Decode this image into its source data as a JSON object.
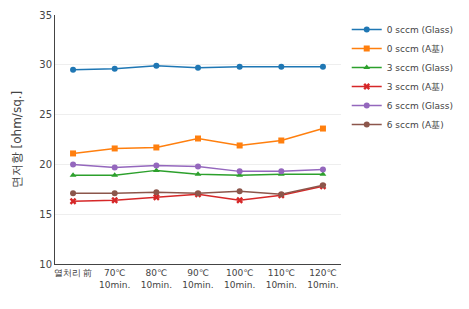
{
  "chart_data": {
    "type": "line",
    "categories": [
      "열처리 前",
      "70℃\n10min.",
      "80℃\n10min.",
      "90℃\n10min.",
      "100℃\n10min.",
      "110℃\n10min.",
      "120℃\n10min."
    ],
    "series": [
      {
        "name": "0 sccm (Glass)",
        "marker": "circle",
        "values": [
          29.5,
          29.6,
          29.9,
          29.7,
          29.8,
          29.8,
          29.8
        ]
      },
      {
        "name": "0 sccm (A基)",
        "marker": "square",
        "values": [
          21.1,
          21.6,
          21.7,
          22.6,
          21.9,
          22.4,
          23.6
        ]
      },
      {
        "name": "3 sccm (Glass)",
        "marker": "triangle-up",
        "values": [
          18.9,
          18.9,
          19.4,
          19.0,
          18.9,
          19.0,
          19.0
        ]
      },
      {
        "name": "3 sccm (A基)",
        "marker": "x",
        "values": [
          16.3,
          16.4,
          16.7,
          17.0,
          16.4,
          16.9,
          17.8
        ]
      },
      {
        "name": "6 sccm (Glass)",
        "marker": "circle",
        "values": [
          20.0,
          19.7,
          19.9,
          19.8,
          19.3,
          19.3,
          19.5
        ]
      },
      {
        "name": "6 sccm (A基)",
        "marker": "circle",
        "values": [
          17.1,
          17.1,
          17.2,
          17.1,
          17.3,
          17.0,
          17.9
        ]
      }
    ],
    "ylabel": "면저항 [ohm/sq.]",
    "ylim": [
      10,
      35
    ],
    "yticks": [
      10,
      15,
      20,
      25,
      30,
      35
    ],
    "grid": true,
    "legend": "right"
  }
}
